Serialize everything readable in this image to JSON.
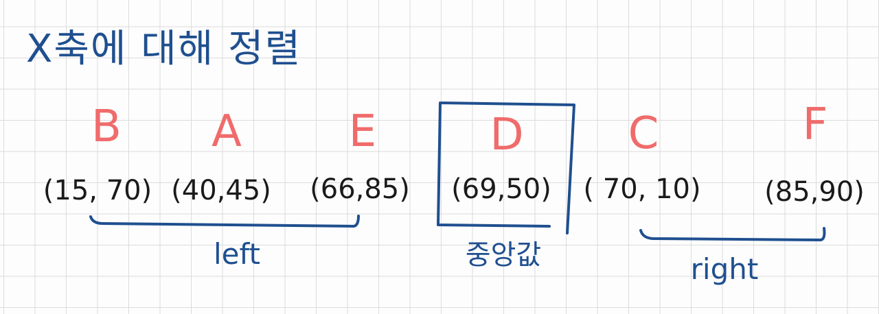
{
  "colors": {
    "ink": "#1f4f8f",
    "red": "#f06b6b",
    "text": "#1a1a1a"
  },
  "title": "X축에 대해 정렬",
  "points": [
    {
      "letter": "B",
      "coord": "(15, 70)"
    },
    {
      "letter": "A",
      "coord": "(40,45)"
    },
    {
      "letter": "E",
      "coord": "(66,85)"
    },
    {
      "letter": "D",
      "coord": "(69,50)"
    },
    {
      "letter": "C",
      "coord": "( 70, 10)"
    },
    {
      "letter": "F",
      "coord": "(85,90)"
    }
  ],
  "groups": {
    "left": "left",
    "median": "중앙값",
    "right": "right"
  }
}
